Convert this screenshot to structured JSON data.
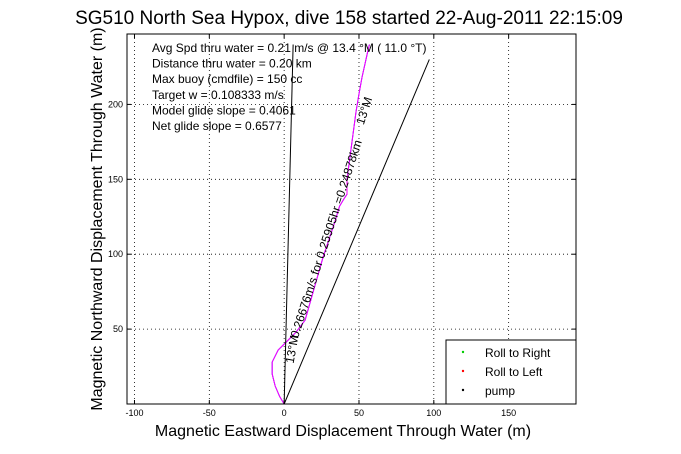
{
  "chart_data": {
    "type": "line",
    "title": "SG510 North Sea Hypox, dive 158 started 22-Aug-2011 22:15:09",
    "xlabel": "Magnetic Eastward Displacement Through Water (m)",
    "ylabel": "Magnetic Northward Displacement Through Water (m)",
    "xlim": [
      -105,
      195
    ],
    "ylim": [
      0,
      247
    ],
    "xticks": [
      -100,
      -50,
      0,
      50,
      100,
      150
    ],
    "yticks": [
      50,
      100,
      150,
      200
    ],
    "grid": true,
    "annotations": [
      "Avg Spd thru water =  0.21 m/s @  13.4   °M ( 11.0 °T)",
      "Distance thru water =  0.20 km",
      "Max buoy (cmdfile) = 150 cc",
      "Target w = 0.108333 m/s",
      "Model glide slope = 0.4061",
      "Net glide slope = 0.6577"
    ],
    "track_labels": [
      {
        "text": "0.26676m/s for 0.25905hr =0.24878km",
        "rotation": -72
      },
      {
        "text": "13°M",
        "rotation": -72
      },
      {
        "text": "13°M",
        "rotation": -80
      }
    ],
    "series": [
      {
        "name": "",
        "color": "#0000ff",
        "x": [
          0,
          -3,
          -6,
          -8,
          -8,
          -4,
          2,
          8,
          14,
          18,
          22,
          26,
          30,
          34,
          37,
          40,
          42,
          42,
          44,
          46,
          48,
          50,
          52,
          54,
          56,
          57
        ],
        "y": [
          0,
          5,
          12,
          20,
          28,
          36,
          42,
          48,
          56,
          70,
          84,
          98,
          110,
          122,
          132,
          137,
          140,
          150,
          165,
          180,
          195,
          207,
          218,
          227,
          236,
          240
        ]
      },
      {
        "name": "",
        "color": "#ff00ff",
        "x": [
          0,
          -3,
          -6,
          -8,
          -8,
          -4,
          2,
          8,
          14,
          18,
          22,
          26,
          30,
          34,
          37,
          40,
          42,
          42,
          44,
          46,
          48,
          50,
          52,
          54,
          56,
          57
        ],
        "y": [
          0,
          5,
          12,
          20,
          28,
          36,
          42,
          48,
          56,
          70,
          84,
          98,
          110,
          122,
          132,
          137,
          140,
          150,
          165,
          180,
          195,
          207,
          218,
          227,
          236,
          240
        ]
      },
      {
        "name": "",
        "color": "#000000",
        "x": [
          0,
          6
        ],
        "y": [
          0,
          240
        ]
      },
      {
        "name": "",
        "color": "#000000",
        "x": [
          0,
          97
        ],
        "y": [
          0,
          230
        ]
      }
    ],
    "legend": {
      "placement": "bottom-right",
      "entries": [
        {
          "label": "Roll to Right",
          "color": "#00cc00"
        },
        {
          "label": "Roll to Left",
          "color": "#ff0000"
        },
        {
          "label": "pump",
          "color": "#000000"
        }
      ]
    }
  }
}
